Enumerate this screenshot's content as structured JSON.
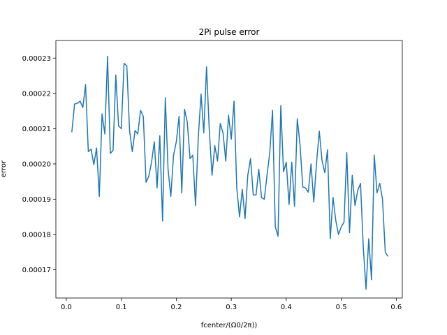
{
  "chart_data": {
    "type": "line",
    "title": "2Pi pulse error",
    "xlabel": "fcenter/(Ω0/2π))",
    "ylabel": "error",
    "xlim": [
      -0.019,
      0.611
    ],
    "ylim": [
      0.000162,
      0.000235
    ],
    "grid": false,
    "xticks": [
      0.0,
      0.1,
      0.2,
      0.3,
      0.4,
      0.5,
      0.6
    ],
    "xtick_labels": [
      "0.0",
      "0.1",
      "0.2",
      "0.3",
      "0.4",
      "0.5",
      "0.6"
    ],
    "yticks": [
      0.00017,
      0.00018,
      0.00019,
      0.0002,
      0.00021,
      0.00022,
      0.00023
    ],
    "ytick_labels": [
      "0.00017",
      "0.00018",
      "0.00019",
      "0.00020",
      "0.00021",
      "0.00022",
      "0.00023"
    ],
    "series": [
      {
        "name": "",
        "color": "#1f77b4",
        "x": [
          0.01,
          0.015,
          0.02,
          0.025,
          0.03,
          0.035,
          0.04,
          0.045,
          0.05,
          0.055,
          0.06,
          0.065,
          0.07,
          0.075,
          0.08,
          0.085,
          0.09,
          0.095,
          0.1,
          0.105,
          0.11,
          0.115,
          0.12,
          0.125,
          0.13,
          0.135,
          0.14,
          0.145,
          0.15,
          0.155,
          0.16,
          0.165,
          0.17,
          0.175,
          0.18,
          0.185,
          0.19,
          0.195,
          0.2,
          0.205,
          0.21,
          0.215,
          0.22,
          0.225,
          0.23,
          0.235,
          0.24,
          0.245,
          0.25,
          0.255,
          0.26,
          0.265,
          0.27,
          0.275,
          0.28,
          0.285,
          0.29,
          0.295,
          0.3,
          0.305,
          0.31,
          0.315,
          0.32,
          0.325,
          0.33,
          0.335,
          0.34,
          0.345,
          0.35,
          0.355,
          0.36,
          0.365,
          0.37,
          0.375,
          0.38,
          0.385,
          0.39,
          0.395,
          0.4,
          0.405,
          0.41,
          0.415,
          0.42,
          0.425,
          0.43,
          0.435,
          0.44,
          0.445,
          0.45,
          0.455,
          0.46,
          0.465,
          0.47,
          0.475,
          0.48,
          0.485,
          0.49,
          0.495,
          0.5,
          0.505,
          0.51,
          0.515,
          0.52,
          0.525,
          0.53,
          0.535,
          0.54,
          0.545,
          0.55,
          0.555,
          0.56,
          0.565,
          0.57,
          0.575,
          0.58,
          0.585
        ],
        "y": [
          0.000209,
          0.000217,
          0.0002172,
          0.0002178,
          0.000216,
          0.0002225,
          0.0002035,
          0.0002042,
          0.0001998,
          0.0002045,
          0.0001908,
          0.0002142,
          0.0002085,
          0.0002305,
          0.000203,
          0.0002038,
          0.0002252,
          0.0002108,
          0.00021,
          0.0002285,
          0.0002278,
          0.0002095,
          0.0002035,
          0.0002095,
          0.0002085,
          0.0002152,
          0.0002135,
          0.0001948,
          0.0001965,
          0.0002005,
          0.0002063,
          0.0001932,
          0.000208,
          0.0001838,
          0.0002188,
          0.0001985,
          0.0001908,
          0.0002025,
          0.0002063,
          0.0002135,
          0.0001918,
          0.0002155,
          0.0002118,
          0.0002015,
          0.0002025,
          0.0001882,
          0.0002075,
          0.0002198,
          0.0002088,
          0.0002275,
          0.0002095,
          0.0001968,
          0.0002052,
          0.0002008,
          0.0002115,
          0.0002088,
          0.0002008,
          0.0002138,
          0.000207,
          0.0002178,
          0.0001932,
          0.000185,
          0.0001928,
          0.0001845,
          0.0001968,
          0.0002015,
          0.0001912,
          0.0001912,
          0.0001985,
          0.0001905,
          0.00019,
          0.0001968,
          0.0002032,
          0.0002152,
          0.0001822,
          0.0001795,
          0.0002165,
          0.0001978,
          0.0002005,
          0.0001885,
          0.0002005,
          0.000188,
          0.0002128,
          0.0002055,
          0.0001935,
          0.0001932,
          0.000192,
          0.0002,
          0.0001892,
          0.0002002,
          0.0002093,
          0.000201,
          0.0001975,
          0.000204,
          0.0001788,
          0.0001905,
          0.000184,
          0.00018,
          0.0001822,
          0.0001835,
          0.0002032,
          0.0001805,
          0.0001968,
          0.0001882,
          0.0001925,
          0.0001945,
          0.0001765,
          0.0001645,
          0.0001788,
          0.0001672,
          0.0002025,
          0.0001918,
          0.0001945,
          0.00019,
          0.000175,
          0.0001738
        ]
      }
    ]
  }
}
